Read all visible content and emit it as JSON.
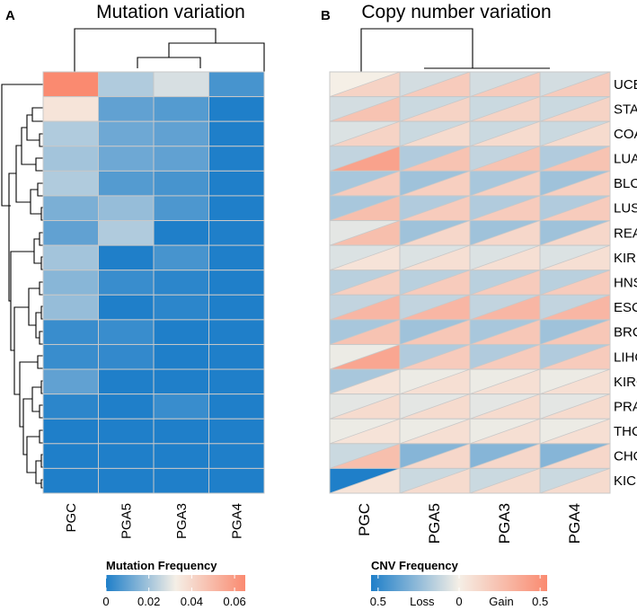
{
  "panels": {
    "a_letter": "A",
    "b_letter": "B",
    "a_title": "Mutation variation",
    "b_title": "Copy number variation"
  },
  "colors": {
    "low": "#1f7fc9",
    "mid": "#f5efe6",
    "high": "#fa8a70",
    "grid": "#c8c8c8"
  },
  "legends": {
    "mutation": {
      "title": "Mutation Frequency",
      "ticks": [
        "0",
        "0.02",
        "0.04",
        "0.06"
      ],
      "tick_values": [
        0,
        0.02,
        0.04,
        0.06
      ],
      "range": [
        0,
        0.065
      ]
    },
    "cnv": {
      "title": "CNV Frequency",
      "labels": [
        "0.5",
        "Loss",
        "0",
        "Gain",
        "0.5"
      ]
    }
  },
  "chart_data": [
    {
      "type": "heatmap",
      "title": "Mutation variation",
      "columns": [
        "PGC",
        "PGA5",
        "PGA3",
        "PGA4"
      ],
      "value_range": [
        0,
        0.065
      ],
      "values": [
        [
          0.065,
          0.022,
          0.028,
          0.006
        ],
        [
          0.036,
          0.01,
          0.008,
          0.0
        ],
        [
          0.022,
          0.012,
          0.01,
          0.0
        ],
        [
          0.02,
          0.012,
          0.01,
          0.0
        ],
        [
          0.022,
          0.008,
          0.006,
          0.0
        ],
        [
          0.014,
          0.018,
          0.007,
          0.0
        ],
        [
          0.01,
          0.022,
          0.0,
          0.0
        ],
        [
          0.02,
          0.0,
          0.006,
          0.0
        ],
        [
          0.016,
          0.004,
          0.002,
          0.0
        ],
        [
          0.018,
          0.0,
          0.002,
          0.0
        ],
        [
          0.004,
          0.004,
          0.0,
          0.0
        ],
        [
          0.004,
          0.003,
          0.0,
          0.0
        ],
        [
          0.01,
          0.0,
          0.0,
          0.0
        ],
        [
          0.002,
          0.0,
          0.004,
          0.0
        ],
        [
          0.0,
          0.0,
          0.0,
          0.0
        ],
        [
          0.0,
          0.0,
          0.0,
          0.0
        ],
        [
          0.0,
          0.0,
          0.0,
          0.0
        ]
      ]
    },
    {
      "type": "heatmap",
      "title": "Copy number variation",
      "columns": [
        "PGC",
        "PGA5",
        "PGA3",
        "PGA4"
      ],
      "rows": [
        "UCEC",
        "STAD",
        "COAD",
        "LUAD",
        "BLCA",
        "LUSC",
        "READ",
        "KIRP",
        "HNSC",
        "ESCA",
        "BRCA",
        "LIHC",
        "KIRC",
        "PRAD",
        "THCA",
        "CHOL",
        "KICH"
      ],
      "value_range": [
        -0.5,
        0.5
      ],
      "loss": [
        [
          0.0,
          0.08,
          0.08,
          0.08
        ],
        [
          0.08,
          0.1,
          0.1,
          0.1
        ],
        [
          0.06,
          0.1,
          0.1,
          0.1
        ],
        [
          0.12,
          0.16,
          0.12,
          0.16
        ],
        [
          0.18,
          0.2,
          0.18,
          0.2
        ],
        [
          0.18,
          0.16,
          0.16,
          0.16
        ],
        [
          0.04,
          0.2,
          0.2,
          0.2
        ],
        [
          0.06,
          0.06,
          0.06,
          0.06
        ],
        [
          0.14,
          0.14,
          0.14,
          0.14
        ],
        [
          0.12,
          0.12,
          0.12,
          0.12
        ],
        [
          0.18,
          0.2,
          0.18,
          0.2
        ],
        [
          0.02,
          0.16,
          0.16,
          0.16
        ],
        [
          0.18,
          0.02,
          0.02,
          0.02
        ],
        [
          0.04,
          0.04,
          0.04,
          0.04
        ],
        [
          0.02,
          0.02,
          0.02,
          0.02
        ],
        [
          0.1,
          0.26,
          0.26,
          0.26
        ],
        [
          0.5,
          0.1,
          0.1,
          0.1
        ]
      ],
      "gain": [
        [
          0.14,
          0.18,
          0.18,
          0.18
        ],
        [
          0.22,
          0.14,
          0.14,
          0.14
        ],
        [
          0.14,
          0.1,
          0.1,
          0.1
        ],
        [
          0.38,
          0.22,
          0.22,
          0.22
        ],
        [
          0.18,
          0.16,
          0.16,
          0.16
        ],
        [
          0.24,
          0.18,
          0.18,
          0.18
        ],
        [
          0.24,
          0.12,
          0.12,
          0.12
        ],
        [
          0.06,
          0.08,
          0.08,
          0.08
        ],
        [
          0.16,
          0.18,
          0.18,
          0.18
        ],
        [
          0.28,
          0.28,
          0.28,
          0.28
        ],
        [
          0.22,
          0.2,
          0.2,
          0.2
        ],
        [
          0.36,
          0.18,
          0.18,
          0.18
        ],
        [
          0.06,
          0.08,
          0.08,
          0.08
        ],
        [
          0.1,
          0.1,
          0.1,
          0.1
        ],
        [
          0.06,
          0.08,
          0.08,
          0.08
        ],
        [
          0.24,
          0.12,
          0.12,
          0.12
        ],
        [
          0.06,
          0.1,
          0.1,
          0.1
        ]
      ]
    }
  ]
}
